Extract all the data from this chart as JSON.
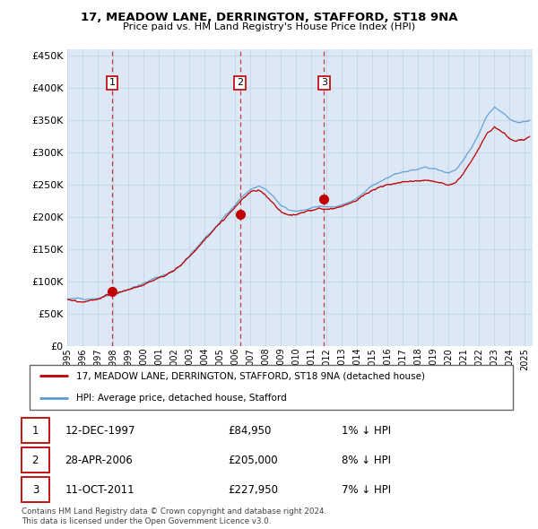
{
  "title1": "17, MEADOW LANE, DERRINGTON, STAFFORD, ST18 9NA",
  "title2": "Price paid vs. HM Land Registry's House Price Index (HPI)",
  "ytick_vals": [
    0,
    50000,
    100000,
    150000,
    200000,
    250000,
    300000,
    350000,
    400000,
    450000
  ],
  "ylim": [
    0,
    460000
  ],
  "xlim_start": 1995.0,
  "xlim_end": 2025.5,
  "hpi_color": "#5b9bd5",
  "price_color": "#c00000",
  "grid_color": "#c8d8e8",
  "plot_bg_color": "#dce8f5",
  "sale_dates_year": [
    1997.95,
    2006.33,
    2011.83
  ],
  "sale_prices": [
    84950,
    205000,
    227950
  ],
  "sale_labels": [
    "1",
    "2",
    "3"
  ],
  "legend_line1": "17, MEADOW LANE, DERRINGTON, STAFFORD, ST18 9NA (detached house)",
  "legend_line2": "HPI: Average price, detached house, Stafford",
  "table_rows": [
    {
      "num": "1",
      "date": "12-DEC-1997",
      "price": "£84,950",
      "pct": "1% ↓ HPI"
    },
    {
      "num": "2",
      "date": "28-APR-2006",
      "price": "£205,000",
      "pct": "8% ↓ HPI"
    },
    {
      "num": "3",
      "date": "11-OCT-2011",
      "price": "£227,950",
      "pct": "7% ↓ HPI"
    }
  ],
  "footnote1": "Contains HM Land Registry data © Crown copyright and database right 2024.",
  "footnote2": "This data is licensed under the Open Government Licence v3.0.",
  "bg_color": "#ffffff"
}
